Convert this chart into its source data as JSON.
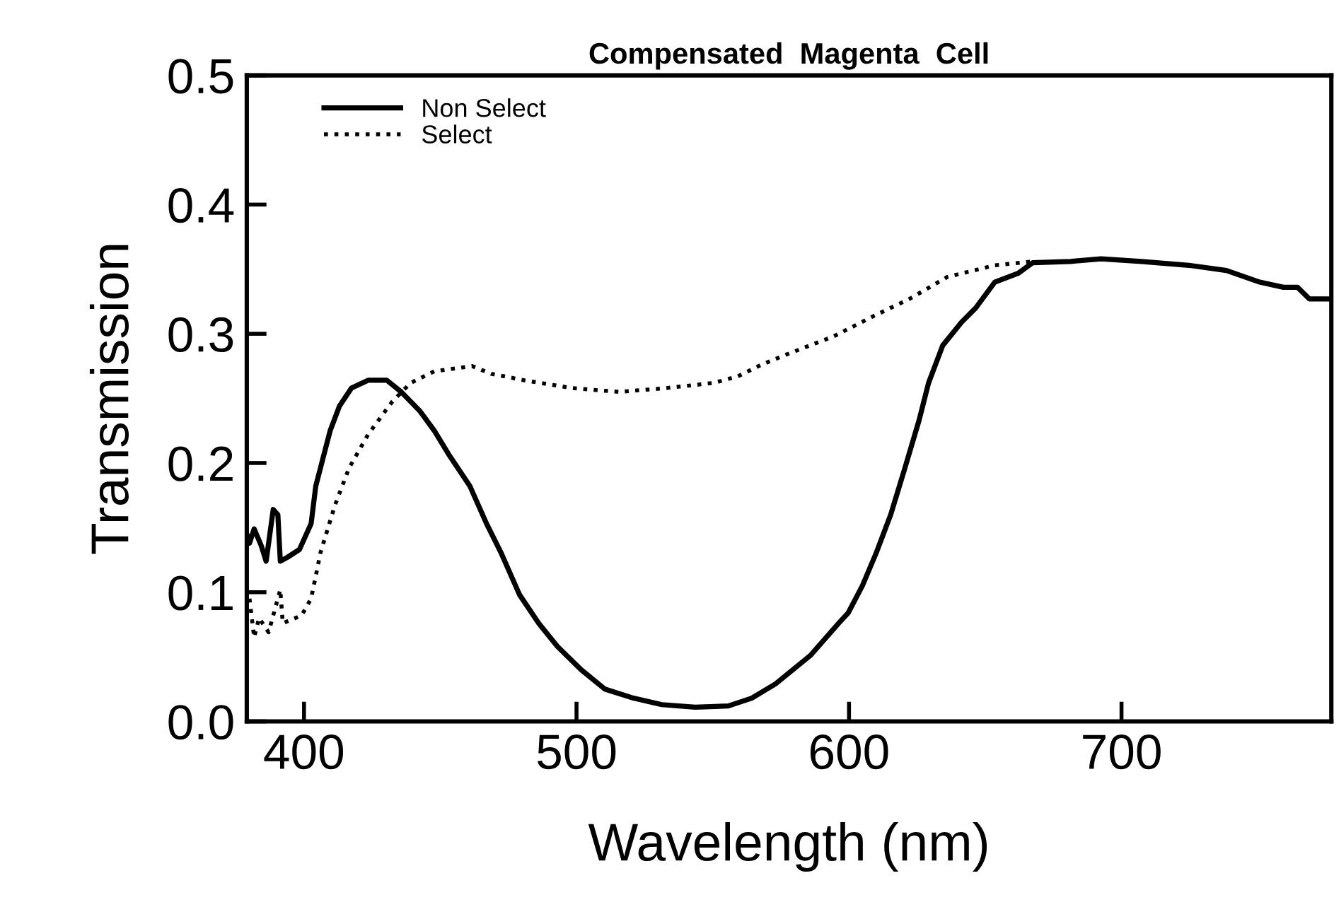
{
  "chart_data": {
    "type": "line",
    "title": "Compensated  Magenta  Cell",
    "xlabel": "Wavelength (nm)",
    "ylabel": "Transmission",
    "xlim": [
      379,
      777
    ],
    "xticks": [
      400,
      500,
      600,
      700
    ],
    "ylim": [
      0,
      0.5
    ],
    "yticks": [
      {
        "value": 0,
        "label": "0.0"
      },
      {
        "value": 0.1,
        "label": "0.1"
      },
      {
        "value": 0.2,
        "label": "0.2"
      },
      {
        "value": 0.3,
        "label": "0.3"
      },
      {
        "value": 0.4,
        "label": "0.4"
      },
      {
        "value": 0.5,
        "label": "0.5"
      }
    ],
    "grid": false,
    "legend": "top left",
    "series": [
      {
        "name": "Non Select",
        "color": "#000000",
        "line_style": "solid",
        "x": [
          379.0,
          380.0,
          381.7,
          384.3,
          386.1,
          388.7,
          390.4,
          391.3,
          393.9,
          398.3,
          402.6,
          404.3,
          407.0,
          409.6,
          413.0,
          417.4,
          423.5,
          430.4,
          435.7,
          442.6,
          447.8,
          453.0,
          460.9,
          467.0,
          472.2,
          479.1,
          486.1,
          493.0,
          501.7,
          510.4,
          520.9,
          531.3,
          543.5,
          555.7,
          564.3,
          573.0,
          585.8,
          596.2,
          599.7,
          604.9,
          610.1,
          615.3,
          620.5,
          625.7,
          629.2,
          634.4,
          641.3,
          646.5,
          653.5,
          662.2,
          667.4,
          681.3,
          692.5,
          707.3,
          724.7,
          738.5,
          750.7,
          759.4,
          764.6,
          768.9,
          776.5
        ],
        "values": [
          0.145,
          0.138,
          0.149,
          0.136,
          0.124,
          0.164,
          0.16,
          0.124,
          0.127,
          0.133,
          0.153,
          0.182,
          0.204,
          0.225,
          0.244,
          0.258,
          0.264,
          0.264,
          0.255,
          0.24,
          0.225,
          0.207,
          0.182,
          0.153,
          0.131,
          0.098,
          0.076,
          0.058,
          0.04,
          0.025,
          0.018,
          0.013,
          0.011,
          0.012,
          0.018,
          0.029,
          0.051,
          0.076,
          0.084,
          0.105,
          0.131,
          0.16,
          0.196,
          0.233,
          0.262,
          0.291,
          0.309,
          0.32,
          0.34,
          0.347,
          0.355,
          0.356,
          0.358,
          0.356,
          0.353,
          0.349,
          0.34,
          0.336,
          0.336,
          0.327,
          0.327
        ]
      },
      {
        "name": "Select",
        "color": "#000000",
        "line_style": "dotted",
        "x": [
          380.0,
          381.7,
          383.5,
          387.0,
          391.3,
          392.2,
          399.1,
          402.6,
          406.1,
          411.3,
          416.5,
          423.5,
          432.2,
          439.1,
          447.8,
          461.7,
          468.7,
          480.9,
          498.3,
          515.7,
          533.0,
          550.4,
          559.1,
          567.8,
          577.1,
          594.4,
          608.3,
          622.2,
          636.1,
          653.5,
          667.4
        ],
        "values": [
          0.095,
          0.065,
          0.08,
          0.069,
          0.102,
          0.076,
          0.082,
          0.095,
          0.131,
          0.167,
          0.196,
          0.222,
          0.247,
          0.262,
          0.271,
          0.275,
          0.269,
          0.264,
          0.258,
          0.255,
          0.258,
          0.262,
          0.267,
          0.276,
          0.284,
          0.298,
          0.313,
          0.327,
          0.344,
          0.353,
          0.356
        ]
      }
    ]
  }
}
